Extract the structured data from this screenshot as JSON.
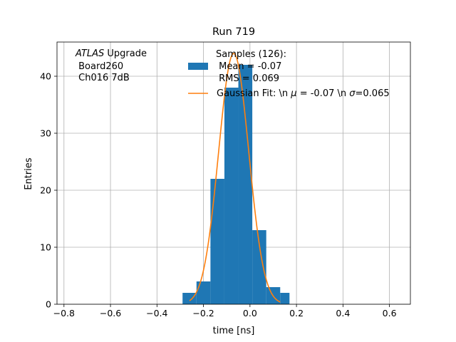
{
  "chart_data": {
    "type": "bar",
    "title": "Run 719",
    "xlabel": "time [ns]",
    "ylabel": "Entries",
    "xlim": [
      -0.83,
      0.69
    ],
    "ylim": [
      0,
      46
    ],
    "grid": true,
    "x_ticks": [
      -0.8,
      -0.6,
      -0.4,
      -0.2,
      0.0,
      0.2,
      0.4,
      0.6
    ],
    "x_tick_labels": [
      "−0.8",
      "−0.6",
      "−0.4",
      "−0.2",
      "0.0",
      "0.2",
      "0.4",
      "0.6"
    ],
    "y_ticks": [
      0,
      10,
      20,
      30,
      40
    ],
    "y_tick_labels": [
      "0",
      "10",
      "20",
      "30",
      "40"
    ],
    "histogram": {
      "color": "#1f77b4",
      "bin_edges": [
        -0.29,
        -0.23,
        -0.17,
        -0.11,
        -0.05,
        0.01,
        0.07,
        0.13,
        0.17
      ],
      "counts": [
        2,
        4,
        22,
        38,
        42,
        13,
        3,
        2
      ]
    },
    "gaussian_fit": {
      "color": "#ff7f0e",
      "mu": -0.07,
      "sigma": 0.065,
      "amplitude": 44,
      "x_range": [
        -0.26,
        0.13
      ]
    },
    "annotation": {
      "line1_italic": "ATLAS",
      "line1_rest": " Upgrade",
      "line2": " Board260",
      "line3": " Ch016 7dB"
    },
    "legend": {
      "position": "top-center",
      "hist_label_lines": [
        "Samples (126):",
        " Mean = -0.07",
        " RMS = 0.069"
      ],
      "fit_label_a": "Gaussian Fit: \\n ",
      "fit_label_mu": "μ",
      "fit_label_b": " = -0.07 \\n ",
      "fit_label_sigma": "σ",
      "fit_label_c": "=0.065"
    }
  }
}
